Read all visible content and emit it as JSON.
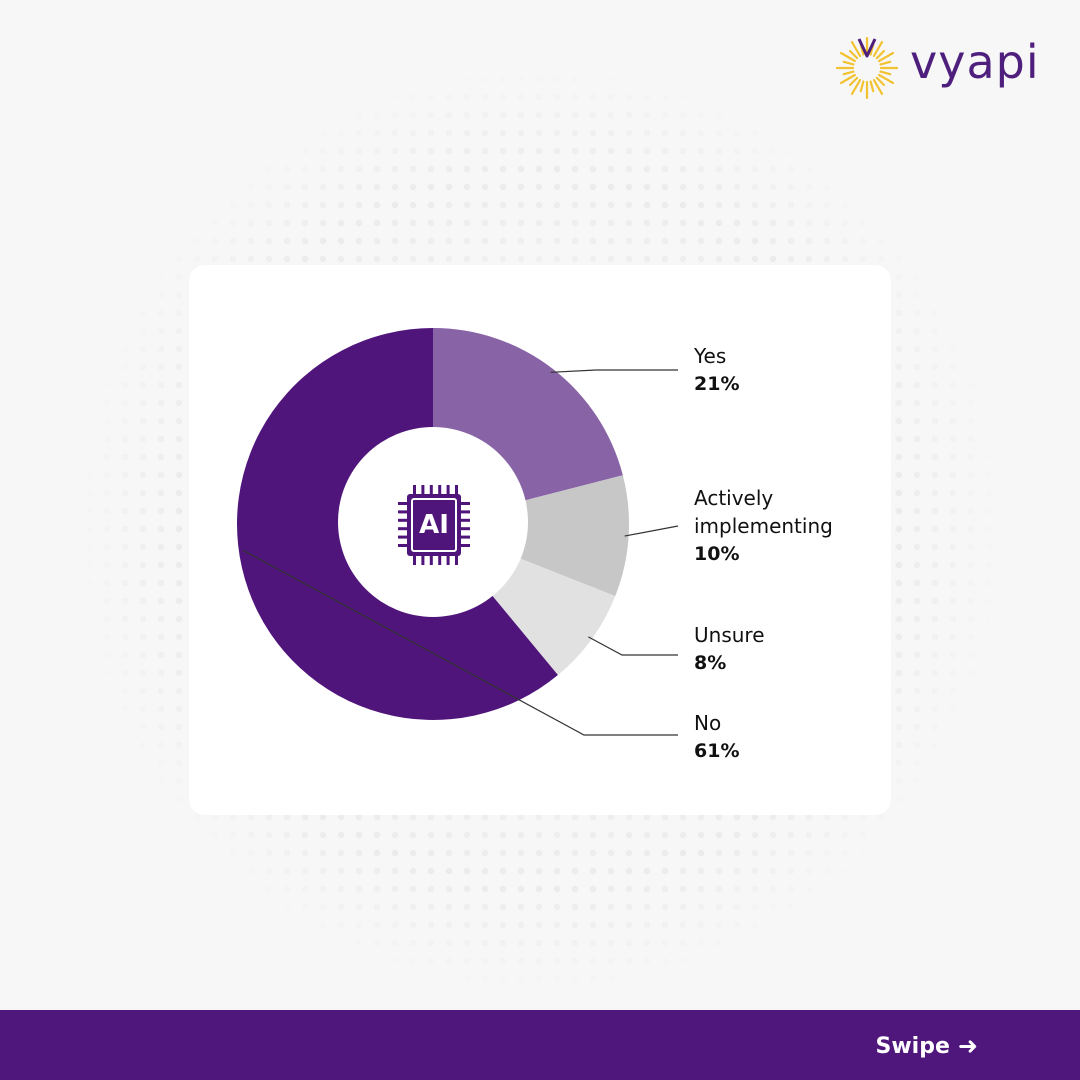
{
  "brand": {
    "name": "vyapi",
    "primary_color": "#4f177b",
    "sun_color": "#f2c230",
    "logo_icon": "sunburst-icon"
  },
  "center_icon": {
    "label": "AI",
    "icon": "chip-icon"
  },
  "chart_data": {
    "type": "pie",
    "donut": true,
    "title": "",
    "slices": [
      {
        "label": "Yes",
        "value": 21,
        "display": "21%",
        "color": "#8863a6"
      },
      {
        "label": "Actively implementing",
        "value": 10,
        "display": "10%",
        "color": "#c7c7c7"
      },
      {
        "label": "Unsure",
        "value": 8,
        "display": "8%",
        "color": "#e1e1e1"
      },
      {
        "label": "No",
        "value": 61,
        "display": "61%",
        "color": "#50157b"
      }
    ]
  },
  "footer": {
    "swipe_label": "Swipe",
    "arrow_glyph": "➜"
  }
}
